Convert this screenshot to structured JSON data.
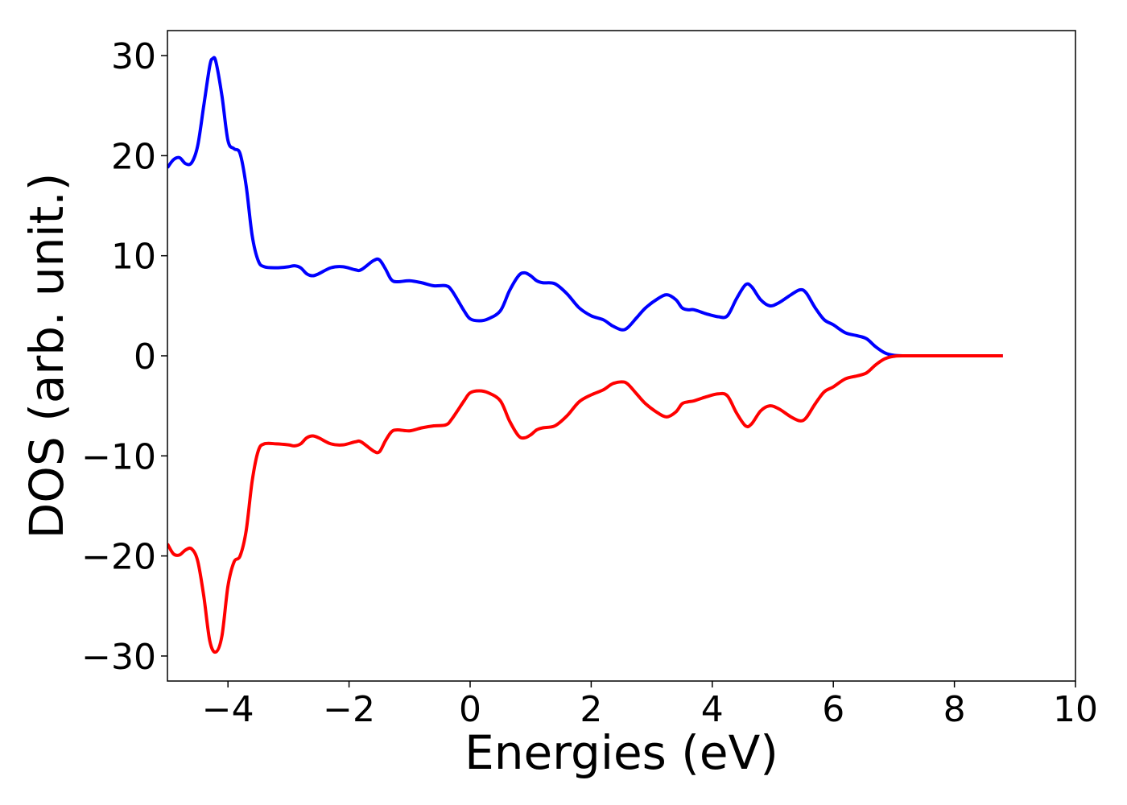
{
  "chart_data": {
    "type": "line",
    "title": "",
    "xlabel": "Energies (eV)",
    "ylabel": "DOS (arb. unit.)",
    "xlim": [
      -5,
      10
    ],
    "ylim": [
      -32.5,
      32.5
    ],
    "xticks": [
      -4,
      -2,
      0,
      2,
      4,
      6,
      8,
      10
    ],
    "xtick_labels": [
      "−4",
      "−2",
      "0",
      "2",
      "4",
      "6",
      "8",
      "10"
    ],
    "yticks": [
      30,
      20,
      10,
      0,
      -10,
      -20,
      -30
    ],
    "ytick_labels": [
      "30",
      "20",
      "10",
      "0",
      "−10",
      "−20",
      "−30"
    ],
    "grid": false,
    "legend": "none",
    "series": [
      {
        "color": "#0000ff",
        "points": [
          [
            -5.0,
            18.8
          ],
          [
            -4.9,
            19.6
          ],
          [
            -4.8,
            19.8
          ],
          [
            -4.7,
            19.2
          ],
          [
            -4.6,
            19.3
          ],
          [
            -4.5,
            21.0
          ],
          [
            -4.4,
            25.0
          ],
          [
            -4.3,
            29.0
          ],
          [
            -4.25,
            29.7
          ],
          [
            -4.2,
            29.4
          ],
          [
            -4.1,
            26.0
          ],
          [
            -4.0,
            21.5
          ],
          [
            -3.9,
            20.7
          ],
          [
            -3.8,
            20.2
          ],
          [
            -3.7,
            17.0
          ],
          [
            -3.6,
            12.0
          ],
          [
            -3.5,
            9.5
          ],
          [
            -3.4,
            8.9
          ],
          [
            -3.2,
            8.8
          ],
          [
            -3.0,
            8.9
          ],
          [
            -2.9,
            9.0
          ],
          [
            -2.8,
            8.8
          ],
          [
            -2.7,
            8.2
          ],
          [
            -2.6,
            8.0
          ],
          [
            -2.5,
            8.2
          ],
          [
            -2.3,
            8.8
          ],
          [
            -2.1,
            8.9
          ],
          [
            -1.9,
            8.6
          ],
          [
            -1.8,
            8.6
          ],
          [
            -1.6,
            9.5
          ],
          [
            -1.5,
            9.6
          ],
          [
            -1.4,
            8.7
          ],
          [
            -1.3,
            7.6
          ],
          [
            -1.2,
            7.4
          ],
          [
            -1.0,
            7.5
          ],
          [
            -0.8,
            7.3
          ],
          [
            -0.6,
            7.0
          ],
          [
            -0.4,
            7.0
          ],
          [
            -0.3,
            6.5
          ],
          [
            -0.1,
            4.5
          ],
          [
            0.0,
            3.7
          ],
          [
            0.15,
            3.5
          ],
          [
            0.3,
            3.7
          ],
          [
            0.5,
            4.5
          ],
          [
            0.65,
            6.5
          ],
          [
            0.8,
            8.0
          ],
          [
            0.9,
            8.3
          ],
          [
            1.0,
            8.0
          ],
          [
            1.1,
            7.5
          ],
          [
            1.2,
            7.3
          ],
          [
            1.4,
            7.2
          ],
          [
            1.6,
            6.2
          ],
          [
            1.8,
            4.8
          ],
          [
            2.0,
            4.0
          ],
          [
            2.2,
            3.6
          ],
          [
            2.35,
            3.0
          ],
          [
            2.5,
            2.6
          ],
          [
            2.6,
            2.8
          ],
          [
            2.75,
            3.8
          ],
          [
            2.9,
            4.8
          ],
          [
            3.1,
            5.7
          ],
          [
            3.25,
            6.1
          ],
          [
            3.4,
            5.6
          ],
          [
            3.5,
            4.8
          ],
          [
            3.6,
            4.6
          ],
          [
            3.7,
            4.6
          ],
          [
            3.9,
            4.2
          ],
          [
            4.1,
            3.9
          ],
          [
            4.25,
            4.0
          ],
          [
            4.4,
            5.7
          ],
          [
            4.55,
            7.1
          ],
          [
            4.65,
            6.9
          ],
          [
            4.8,
            5.6
          ],
          [
            4.95,
            5.0
          ],
          [
            5.1,
            5.3
          ],
          [
            5.3,
            6.1
          ],
          [
            5.45,
            6.6
          ],
          [
            5.55,
            6.3
          ],
          [
            5.7,
            4.8
          ],
          [
            5.85,
            3.6
          ],
          [
            6.0,
            3.1
          ],
          [
            6.2,
            2.3
          ],
          [
            6.4,
            2.0
          ],
          [
            6.55,
            1.7
          ],
          [
            6.7,
            0.9
          ],
          [
            6.85,
            0.3
          ],
          [
            7.0,
            0.05
          ],
          [
            7.2,
            0.0
          ],
          [
            8.0,
            0.0
          ],
          [
            8.8,
            0.0
          ]
        ]
      },
      {
        "color": "#ff0000",
        "points": [
          [
            -5.0,
            -18.8
          ],
          [
            -4.9,
            -19.8
          ],
          [
            -4.8,
            -19.9
          ],
          [
            -4.7,
            -19.4
          ],
          [
            -4.6,
            -19.3
          ],
          [
            -4.5,
            -20.5
          ],
          [
            -4.4,
            -24.0
          ],
          [
            -4.3,
            -28.5
          ],
          [
            -4.2,
            -29.6
          ],
          [
            -4.1,
            -28.0
          ],
          [
            -4.0,
            -23.0
          ],
          [
            -3.9,
            -20.6
          ],
          [
            -3.8,
            -20.0
          ],
          [
            -3.7,
            -17.5
          ],
          [
            -3.6,
            -12.5
          ],
          [
            -3.5,
            -9.5
          ],
          [
            -3.4,
            -8.8
          ],
          [
            -3.2,
            -8.8
          ],
          [
            -3.0,
            -8.9
          ],
          [
            -2.9,
            -9.0
          ],
          [
            -2.8,
            -8.8
          ],
          [
            -2.7,
            -8.2
          ],
          [
            -2.6,
            -8.0
          ],
          [
            -2.5,
            -8.2
          ],
          [
            -2.3,
            -8.8
          ],
          [
            -2.1,
            -8.9
          ],
          [
            -1.9,
            -8.6
          ],
          [
            -1.8,
            -8.6
          ],
          [
            -1.6,
            -9.5
          ],
          [
            -1.5,
            -9.6
          ],
          [
            -1.4,
            -8.5
          ],
          [
            -1.3,
            -7.6
          ],
          [
            -1.2,
            -7.4
          ],
          [
            -1.0,
            -7.5
          ],
          [
            -0.8,
            -7.2
          ],
          [
            -0.6,
            -7.0
          ],
          [
            -0.4,
            -6.9
          ],
          [
            -0.3,
            -6.3
          ],
          [
            -0.1,
            -4.5
          ],
          [
            0.0,
            -3.7
          ],
          [
            0.15,
            -3.5
          ],
          [
            0.3,
            -3.7
          ],
          [
            0.5,
            -4.5
          ],
          [
            0.65,
            -6.5
          ],
          [
            0.8,
            -8.0
          ],
          [
            0.9,
            -8.2
          ],
          [
            1.0,
            -7.9
          ],
          [
            1.1,
            -7.4
          ],
          [
            1.2,
            -7.2
          ],
          [
            1.4,
            -7.0
          ],
          [
            1.6,
            -6.0
          ],
          [
            1.8,
            -4.6
          ],
          [
            2.0,
            -3.9
          ],
          [
            2.2,
            -3.4
          ],
          [
            2.35,
            -2.8
          ],
          [
            2.5,
            -2.6
          ],
          [
            2.6,
            -2.8
          ],
          [
            2.75,
            -3.8
          ],
          [
            2.9,
            -4.8
          ],
          [
            3.1,
            -5.7
          ],
          [
            3.25,
            -6.1
          ],
          [
            3.4,
            -5.6
          ],
          [
            3.5,
            -4.8
          ],
          [
            3.6,
            -4.6
          ],
          [
            3.7,
            -4.5
          ],
          [
            3.9,
            -4.1
          ],
          [
            4.1,
            -3.8
          ],
          [
            4.25,
            -4.0
          ],
          [
            4.4,
            -5.7
          ],
          [
            4.55,
            -7.0
          ],
          [
            4.65,
            -6.8
          ],
          [
            4.8,
            -5.5
          ],
          [
            4.95,
            -5.0
          ],
          [
            5.1,
            -5.3
          ],
          [
            5.3,
            -6.1
          ],
          [
            5.45,
            -6.5
          ],
          [
            5.55,
            -6.2
          ],
          [
            5.7,
            -4.8
          ],
          [
            5.85,
            -3.6
          ],
          [
            6.0,
            -3.1
          ],
          [
            6.2,
            -2.3
          ],
          [
            6.4,
            -2.0
          ],
          [
            6.55,
            -1.7
          ],
          [
            6.7,
            -0.9
          ],
          [
            6.85,
            -0.3
          ],
          [
            7.0,
            -0.05
          ],
          [
            7.2,
            0.0
          ],
          [
            8.0,
            0.0
          ],
          [
            8.8,
            0.0
          ]
        ]
      }
    ]
  }
}
